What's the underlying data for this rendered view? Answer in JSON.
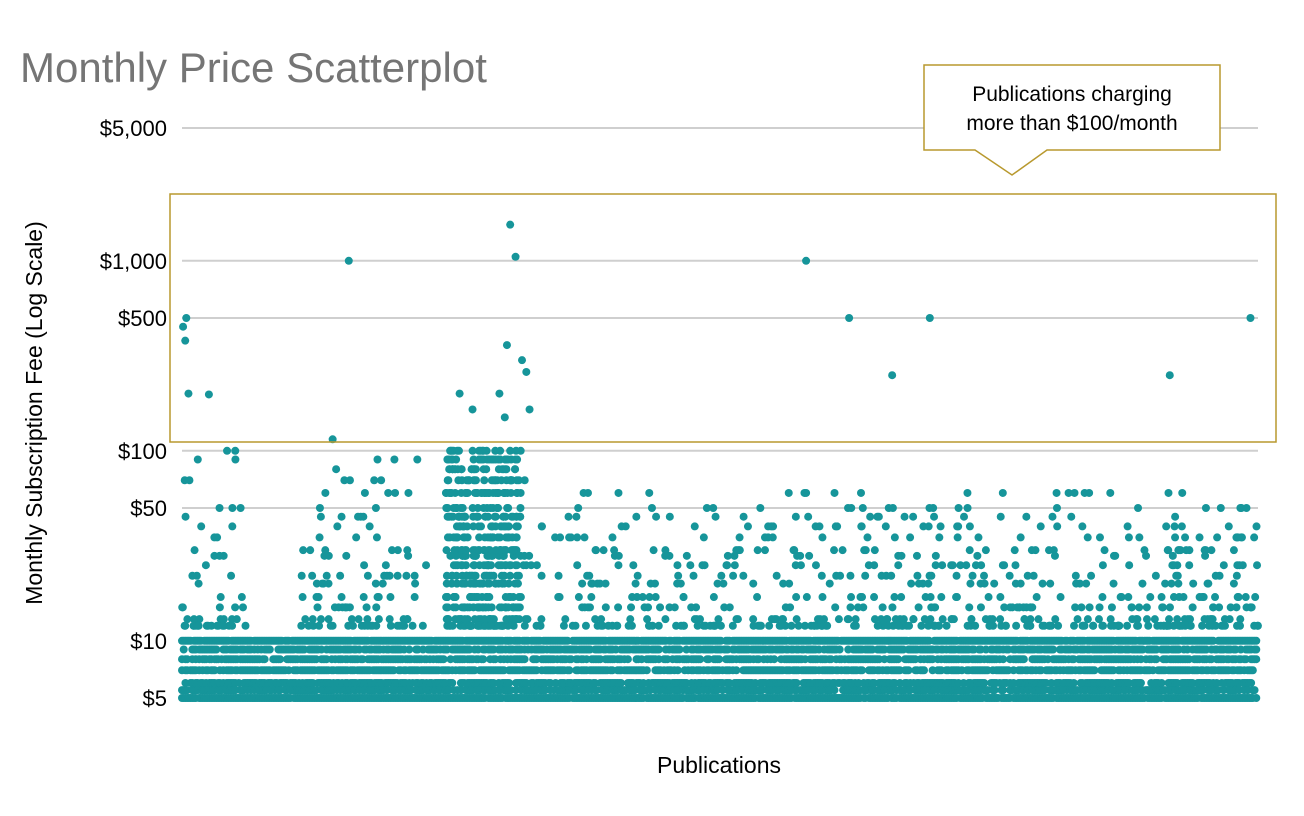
{
  "chart_data": {
    "type": "scatter",
    "title": "Monthly Price Scatterplot",
    "xlabel": "Publications",
    "ylabel": "Monthly Subscription Fee (Log Scale)",
    "y_scale": "log",
    "ylim": [
      5,
      5000
    ],
    "y_ticks": [
      {
        "value": 5000,
        "label": "$5,000"
      },
      {
        "value": 1000,
        "label": "$1,000"
      },
      {
        "value": 500,
        "label": "$500"
      },
      {
        "value": 100,
        "label": "$100"
      },
      {
        "value": 50,
        "label": "$50"
      },
      {
        "value": 10,
        "label": "$10"
      },
      {
        "value": 5,
        "label": "$5"
      }
    ],
    "x_count": 1000,
    "grid": true,
    "marker_color": "#16959A",
    "highlight": {
      "label": "Publications charging more than $100/month",
      "label_lines": [
        "Publications charging",
        "more than $100/month"
      ],
      "threshold": 100,
      "border_color": "#B8992E"
    },
    "points_above_100": [
      {
        "x": 1,
        "y": 450
      },
      {
        "x": 4,
        "y": 500
      },
      {
        "x": 3,
        "y": 380
      },
      {
        "x": 6,
        "y": 200
      },
      {
        "x": 25,
        "y": 198
      },
      {
        "x": 140,
        "y": 115
      },
      {
        "x": 155,
        "y": 1000
      },
      {
        "x": 258,
        "y": 200
      },
      {
        "x": 270,
        "y": 165
      },
      {
        "x": 295,
        "y": 200
      },
      {
        "x": 300,
        "y": 150
      },
      {
        "x": 305,
        "y": 1550
      },
      {
        "x": 310,
        "y": 1050
      },
      {
        "x": 302,
        "y": 360
      },
      {
        "x": 316,
        "y": 300
      },
      {
        "x": 320,
        "y": 260
      },
      {
        "x": 323,
        "y": 165
      },
      {
        "x": 580,
        "y": 1000
      },
      {
        "x": 620,
        "y": 500
      },
      {
        "x": 660,
        "y": 250
      },
      {
        "x": 695,
        "y": 500
      },
      {
        "x": 918,
        "y": 250
      },
      {
        "x": 993,
        "y": 500
      }
    ],
    "dense_clusters": [
      {
        "x_from": 0,
        "x_to": 60,
        "y_max": 100
      },
      {
        "x_from": 110,
        "x_to": 230,
        "y_max": 90
      },
      {
        "x_from": 245,
        "x_to": 335,
        "y_max": 100
      },
      {
        "x_from": 345,
        "x_to": 1000,
        "y_max": 60
      },
      {
        "x_from": 910,
        "x_to": 940,
        "y_max": 100
      }
    ],
    "price_bands": [
      5,
      5.5,
      6,
      7,
      8,
      9,
      10
    ]
  }
}
